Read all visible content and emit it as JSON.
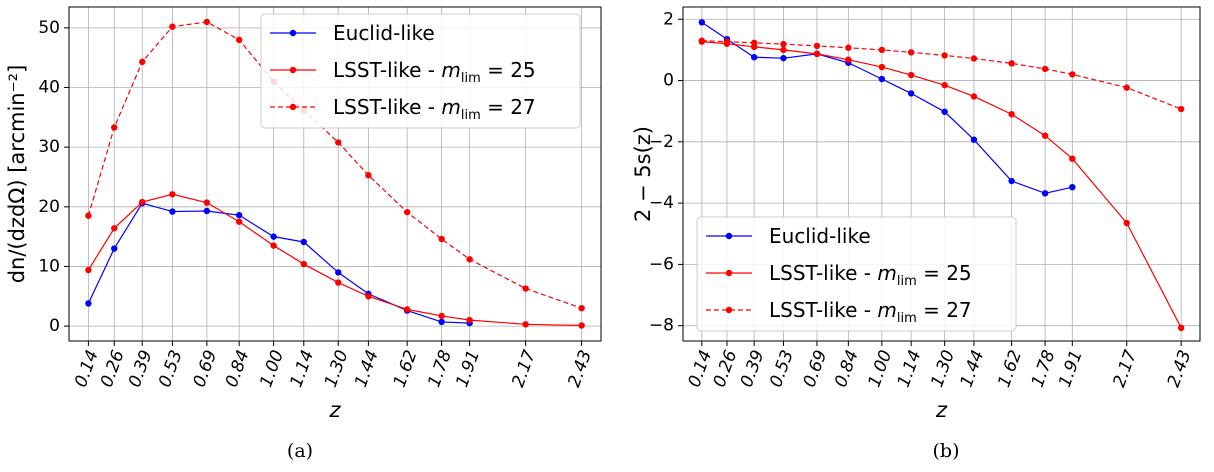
{
  "colors": {
    "euclid": "#0000ff",
    "lsst": "#ff0000",
    "grid": "#b0b0b0",
    "axis": "#000000"
  },
  "chart_data": [
    {
      "type": "line",
      "caption": "(a)",
      "xlabel": "z",
      "ylabel": "dn/(dzdΩ) [arcmin⁻²]",
      "ylim": [
        -2.5,
        53.5
      ],
      "yticks": [
        0,
        10,
        20,
        30,
        40,
        50
      ],
      "xtick_labels": [
        "0.14",
        "0.26",
        "0.39",
        "0.53",
        "0.69",
        "0.84",
        "1.00",
        "1.14",
        "1.30",
        "1.44",
        "1.62",
        "1.78",
        "1.91",
        "2.17",
        "2.43"
      ],
      "xlim": [
        0.05,
        2.52
      ],
      "grid": true,
      "legend": {
        "placement": "top-right",
        "entries": [
          "Euclid-like",
          "LSST-like - m_lim = 25",
          "LSST-like - m_lim = 27"
        ]
      },
      "series": [
        {
          "name": "Euclid-like",
          "color": "blue",
          "dash": "solid",
          "x": [
            0.14,
            0.26,
            0.39,
            0.53,
            0.69,
            0.84,
            1.0,
            1.14,
            1.3,
            1.44,
            1.62,
            1.78,
            1.91
          ],
          "y": [
            3.8,
            13.0,
            20.6,
            19.2,
            19.3,
            18.6,
            15.0,
            14.1,
            9.0,
            5.4,
            2.6,
            0.7,
            0.5
          ]
        },
        {
          "name": "LSST-like - m_lim = 25",
          "color": "red",
          "dash": "solid",
          "x": [
            0.14,
            0.26,
            0.39,
            0.53,
            0.69,
            0.84,
            1.0,
            1.14,
            1.3,
            1.44,
            1.62,
            1.78,
            1.91,
            2.17,
            2.43
          ],
          "y": [
            9.4,
            16.4,
            20.8,
            22.1,
            20.7,
            17.5,
            13.5,
            10.4,
            7.3,
            5.0,
            2.8,
            1.7,
            1.0,
            0.3,
            0.1
          ]
        },
        {
          "name": "LSST-like - m_lim = 27",
          "color": "red",
          "dash": "dashed",
          "x": [
            0.14,
            0.26,
            0.39,
            0.53,
            0.69,
            0.84,
            1.0,
            1.14,
            1.3,
            1.44,
            1.62,
            1.78,
            1.91,
            2.17,
            2.43
          ],
          "y": [
            18.5,
            33.3,
            44.3,
            50.2,
            51.0,
            48.0,
            41.0,
            36.2,
            30.8,
            25.3,
            19.1,
            14.6,
            11.2,
            6.3,
            3.0
          ]
        }
      ]
    },
    {
      "type": "line",
      "caption": "(b)",
      "xlabel": "z",
      "ylabel": "2 − 5s(z)",
      "ylim": [
        -8.5,
        2.4
      ],
      "yticks": [
        -8,
        -6,
        -4,
        -2,
        0,
        2
      ],
      "xtick_labels": [
        "0.14",
        "0.26",
        "0.39",
        "0.53",
        "0.69",
        "0.84",
        "1.00",
        "1.14",
        "1.30",
        "1.44",
        "1.62",
        "1.78",
        "1.91",
        "2.17",
        "2.43"
      ],
      "xlim": [
        0.05,
        2.52
      ],
      "grid": true,
      "legend": {
        "placement": "bottom-left",
        "entries": [
          "Euclid-like",
          "LSST-like - m_lim = 25",
          "LSST-like - m_lim = 27"
        ]
      },
      "series": [
        {
          "name": "Euclid-like",
          "color": "blue",
          "dash": "solid",
          "x": [
            0.14,
            0.26,
            0.39,
            0.53,
            0.69,
            0.84,
            1.0,
            1.14,
            1.3,
            1.44,
            1.62,
            1.78,
            1.91
          ],
          "y": [
            1.9,
            1.35,
            0.76,
            0.73,
            0.87,
            0.58,
            0.05,
            -0.42,
            -1.02,
            -1.93,
            -3.28,
            -3.68,
            -3.48
          ]
        },
        {
          "name": "LSST-like - m_lim = 25",
          "color": "red",
          "dash": "solid",
          "x": [
            0.14,
            0.26,
            0.39,
            0.53,
            0.69,
            0.84,
            1.0,
            1.14,
            1.3,
            1.44,
            1.62,
            1.78,
            1.91,
            2.17,
            2.43
          ],
          "y": [
            1.27,
            1.2,
            1.1,
            1.0,
            0.87,
            0.68,
            0.44,
            0.18,
            -0.15,
            -0.52,
            -1.1,
            -1.8,
            -2.55,
            -4.65,
            -8.07
          ]
        },
        {
          "name": "LSST-like - m_lim = 27",
          "color": "red",
          "dash": "dashed",
          "x": [
            0.14,
            0.26,
            0.39,
            0.53,
            0.69,
            0.84,
            1.0,
            1.14,
            1.3,
            1.44,
            1.62,
            1.78,
            1.91,
            2.17,
            2.43
          ],
          "y": [
            1.3,
            1.27,
            1.23,
            1.19,
            1.13,
            1.07,
            1.0,
            0.92,
            0.82,
            0.72,
            0.56,
            0.38,
            0.2,
            -0.23,
            -0.93
          ]
        }
      ]
    }
  ]
}
